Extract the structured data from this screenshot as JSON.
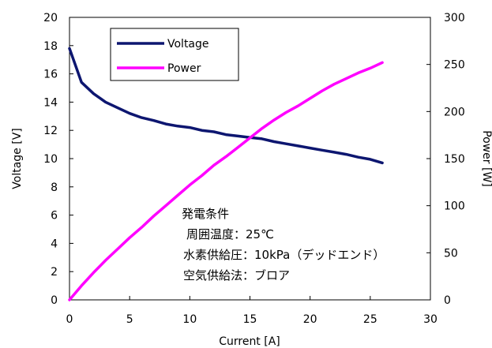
{
  "chart_data": {
    "type": "line",
    "title": "",
    "xlabel": "Current [A]",
    "ylabel": "Voltage [V]",
    "y2label": "Power [W]",
    "xlim": [
      0,
      30
    ],
    "ylim": [
      0,
      20
    ],
    "y2lim": [
      0,
      300
    ],
    "x_ticks": [
      "0",
      "5",
      "10",
      "15",
      "20",
      "25",
      "30"
    ],
    "y_ticks": [
      "0",
      "2",
      "4",
      "6",
      "8",
      "10",
      "12",
      "14",
      "16",
      "18",
      "20"
    ],
    "y2_ticks": [
      "0",
      "50",
      "100",
      "150",
      "200",
      "250",
      "300"
    ],
    "grid": false,
    "legend_position": "top-left",
    "series": [
      {
        "name": "Voltage",
        "axis": "left",
        "color": "#0d1670",
        "x": [
          0,
          1,
          2,
          3,
          4,
          5,
          6,
          7,
          8,
          9,
          10,
          11,
          12,
          13,
          14,
          15,
          16,
          17,
          18,
          19,
          20,
          21,
          22,
          23,
          24,
          25,
          26
        ],
        "values": [
          17.8,
          15.4,
          14.6,
          14.0,
          13.6,
          13.2,
          12.9,
          12.7,
          12.45,
          12.3,
          12.2,
          12.0,
          11.9,
          11.7,
          11.6,
          11.5,
          11.4,
          11.2,
          11.05,
          10.9,
          10.75,
          10.6,
          10.45,
          10.3,
          10.1,
          9.95,
          9.7
        ]
      },
      {
        "name": "Power",
        "axis": "right",
        "color": "#ff00ff",
        "x": [
          0,
          1,
          2,
          3,
          4,
          5,
          6,
          7,
          8,
          9,
          10,
          11,
          12,
          13,
          14,
          15,
          16,
          17,
          18,
          19,
          20,
          21,
          22,
          23,
          24,
          25,
          26
        ],
        "values": [
          0,
          15,
          29,
          42,
          54,
          66,
          77,
          89,
          100,
          111,
          122,
          132,
          143,
          152,
          162,
          172,
          182,
          191,
          199,
          206,
          214,
          222,
          229,
          235,
          241,
          246,
          252
        ]
      }
    ],
    "annotations": [
      "発電条件",
      "周囲温度：25℃",
      "水素供給圧：10kPa（デッドエンド）",
      "空気供給法：ブロア"
    ]
  }
}
